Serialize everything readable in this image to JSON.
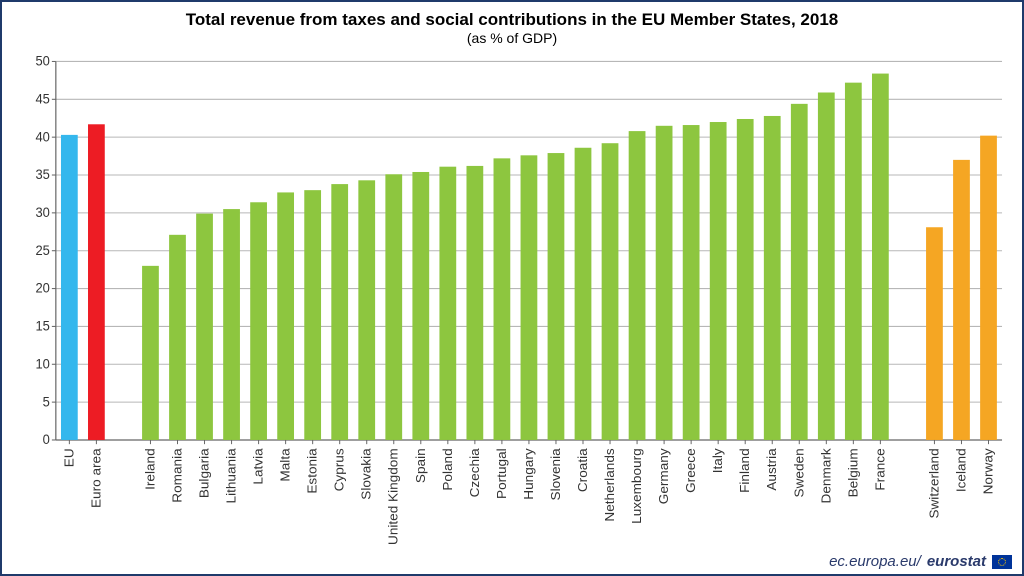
{
  "chart": {
    "type": "bar",
    "title": "Total revenue from taxes and social contributions in the EU Member States, 2018",
    "subtitle": "(as % of GDP)",
    "title_fontsize": 17,
    "subtitle_fontsize": 14,
    "ylim": [
      0,
      50
    ],
    "ytick_step": 5,
    "background_color": "#ffffff",
    "grid_color": "#b7b7b7",
    "axis_color": "#666666",
    "bar_width_ratio": 0.62,
    "label_fontsize": 13,
    "groups": [
      {
        "name": "aggregates",
        "bars": [
          {
            "label": "EU",
            "value": 40.3,
            "color": "#34b7ed"
          },
          {
            "label": "Euro area",
            "value": 41.7,
            "color": "#ed1c24"
          }
        ]
      },
      {
        "name": "member-states",
        "bars": [
          {
            "label": "Ireland",
            "value": 23.0,
            "color": "#8dc63f"
          },
          {
            "label": "Romania",
            "value": 27.1,
            "color": "#8dc63f"
          },
          {
            "label": "Bulgaria",
            "value": 29.9,
            "color": "#8dc63f"
          },
          {
            "label": "Lithuania",
            "value": 30.5,
            "color": "#8dc63f"
          },
          {
            "label": "Latvia",
            "value": 31.4,
            "color": "#8dc63f"
          },
          {
            "label": "Malta",
            "value": 32.7,
            "color": "#8dc63f"
          },
          {
            "label": "Estonia",
            "value": 33.0,
            "color": "#8dc63f"
          },
          {
            "label": "Cyprus",
            "value": 33.8,
            "color": "#8dc63f"
          },
          {
            "label": "Slovakia",
            "value": 34.3,
            "color": "#8dc63f"
          },
          {
            "label": "United Kingdom",
            "value": 35.1,
            "color": "#8dc63f"
          },
          {
            "label": "Spain",
            "value": 35.4,
            "color": "#8dc63f"
          },
          {
            "label": "Poland",
            "value": 36.1,
            "color": "#8dc63f"
          },
          {
            "label": "Czechia",
            "value": 36.2,
            "color": "#8dc63f"
          },
          {
            "label": "Portugal",
            "value": 37.2,
            "color": "#8dc63f"
          },
          {
            "label": "Hungary",
            "value": 37.6,
            "color": "#8dc63f"
          },
          {
            "label": "Slovenia",
            "value": 37.9,
            "color": "#8dc63f"
          },
          {
            "label": "Croatia",
            "value": 38.6,
            "color": "#8dc63f"
          },
          {
            "label": "Netherlands",
            "value": 39.2,
            "color": "#8dc63f"
          },
          {
            "label": "Luxembourg",
            "value": 40.8,
            "color": "#8dc63f"
          },
          {
            "label": "Germany",
            "value": 41.5,
            "color": "#8dc63f"
          },
          {
            "label": "Greece",
            "value": 41.6,
            "color": "#8dc63f"
          },
          {
            "label": "Italy",
            "value": 42.0,
            "color": "#8dc63f"
          },
          {
            "label": "Finland",
            "value": 42.4,
            "color": "#8dc63f"
          },
          {
            "label": "Austria",
            "value": 42.8,
            "color": "#8dc63f"
          },
          {
            "label": "Sweden",
            "value": 44.4,
            "color": "#8dc63f"
          },
          {
            "label": "Denmark",
            "value": 45.9,
            "color": "#8dc63f"
          },
          {
            "label": "Belgium",
            "value": 47.2,
            "color": "#8dc63f"
          },
          {
            "label": "France",
            "value": 48.4,
            "color": "#8dc63f"
          }
        ]
      },
      {
        "name": "efta",
        "bars": [
          {
            "label": "Switzerland",
            "value": 28.1,
            "color": "#f5a623"
          },
          {
            "label": "Iceland",
            "value": 37.0,
            "color": "#f5a623"
          },
          {
            "label": "Norway",
            "value": 40.2,
            "color": "#f5a623"
          }
        ]
      }
    ],
    "group_gap_slots": 1,
    "footer": {
      "prefix": "ec.europa.eu/",
      "brand": "eurostat",
      "color": "#2a3a6b"
    }
  }
}
